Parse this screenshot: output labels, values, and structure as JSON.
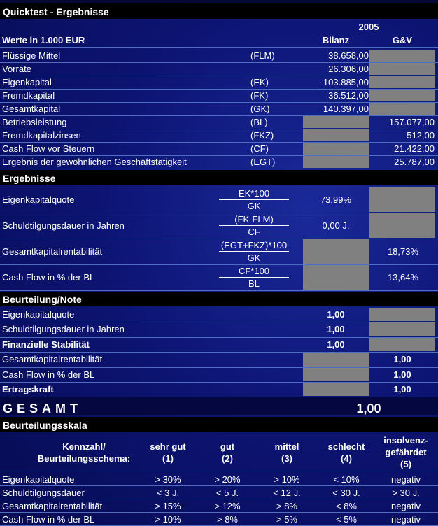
{
  "header": {
    "title": "Quicktest - Ergebnisse",
    "year": "2005",
    "unit": "Werte in 1.000 EUR",
    "col_bilanz": "Bilanz",
    "col_guv": "G&V"
  },
  "inputs": [
    {
      "label": "Flüssige Mittel",
      "abbr": "(FLM)",
      "bilanz": "38.658,00",
      "guv": null
    },
    {
      "label": "Vorräte",
      "abbr": null,
      "bilanz": "26.306,00",
      "guv": null
    },
    {
      "label": "Eigenkapital",
      "abbr": "(EK)",
      "bilanz": "103.885,00",
      "guv": null
    },
    {
      "label": "Fremdkapital",
      "abbr": "(FK)",
      "bilanz": "36.512,00",
      "guv": null
    },
    {
      "label": "Gesamtkapital",
      "abbr": "(GK)",
      "bilanz": "140.397,00",
      "guv": null
    },
    {
      "label": "Betriebsleistung",
      "abbr": "(BL)",
      "bilanz": null,
      "guv": "157.077,00"
    },
    {
      "label": "Fremdkapitalzinsen",
      "abbr": "(FKZ)",
      "bilanz": null,
      "guv": "512,00"
    },
    {
      "label": "Cash Flow vor Steuern",
      "abbr": "(CF)",
      "bilanz": null,
      "guv": "21.422,00"
    },
    {
      "label": "Ergebnis der gewöhnlichen Geschäftstätigkeit",
      "abbr": "(EGT)",
      "bilanz": null,
      "guv": "25.787,00"
    }
  ],
  "results": {
    "title": "Ergebnisse",
    "rows": [
      {
        "label": "Eigenkapitalquote",
        "numerator": "EK*100",
        "denominator": "GK",
        "bilanz": "73,99%",
        "guv": null
      },
      {
        "label": "Schuldtilgungsdauer in Jahren",
        "numerator": "(FK-FLM)",
        "denominator": "CF",
        "bilanz": "0,00 J.",
        "guv": null
      },
      {
        "label": "Gesamtkapitalrentabilität",
        "numerator": "(EGT+FKZ)*100",
        "denominator": "GK",
        "bilanz": null,
        "guv": "18,73%"
      },
      {
        "label": "Cash Flow in % der BL",
        "numerator": "CF*100",
        "denominator": "BL",
        "bilanz": null,
        "guv": "13,64%"
      }
    ]
  },
  "rating": {
    "title": "Beurteilung/Note",
    "rows": [
      {
        "label": "Eigenkapitalquote",
        "bilanz": "1,00",
        "guv": null,
        "emphasis": false
      },
      {
        "label": "Schuldtilgungsdauer in Jahren",
        "bilanz": "1,00",
        "guv": null,
        "emphasis": false
      },
      {
        "label": "Finanzielle Stabilität",
        "bilanz": "1,00",
        "guv": null,
        "emphasis": true
      },
      {
        "label": "Gesamtkapitalrentabilität",
        "bilanz": null,
        "guv": "1,00",
        "emphasis": false
      },
      {
        "label": "Cash Flow in % der BL",
        "bilanz": null,
        "guv": "1,00",
        "emphasis": false
      },
      {
        "label": "Ertragskraft",
        "bilanz": null,
        "guv": "1,00",
        "emphasis": true
      }
    ]
  },
  "total": {
    "label": "GESAMT",
    "value": "1,00"
  },
  "scale": {
    "title": "Beurteilungsskala",
    "headers": [
      [
        "Kennzahl/",
        "Beurteilungsschema:"
      ],
      [
        "sehr gut",
        "(1)"
      ],
      [
        "gut",
        "(2)"
      ],
      [
        "mittel",
        "(3)"
      ],
      [
        "schlecht",
        "(4)"
      ],
      [
        "insolvenz-",
        "gefährdet",
        "(5)"
      ]
    ],
    "rows": [
      [
        "Eigenkapitalquote",
        "> 30%",
        "> 20%",
        "> 10%",
        "< 10%",
        "negativ"
      ],
      [
        "Schuldtilgungsdauer",
        "< 3 J.",
        "< 5 J.",
        "< 12 J.",
        "< 30 J.",
        "> 30 J."
      ],
      [
        "Gesamtkapitalrentabilität",
        "> 15%",
        "> 12%",
        "> 8%",
        "< 8%",
        "negativ"
      ],
      [
        "Cash Flow in % der BL",
        "> 10%",
        "> 8%",
        "> 5%",
        "< 5%",
        "negativ"
      ]
    ]
  }
}
